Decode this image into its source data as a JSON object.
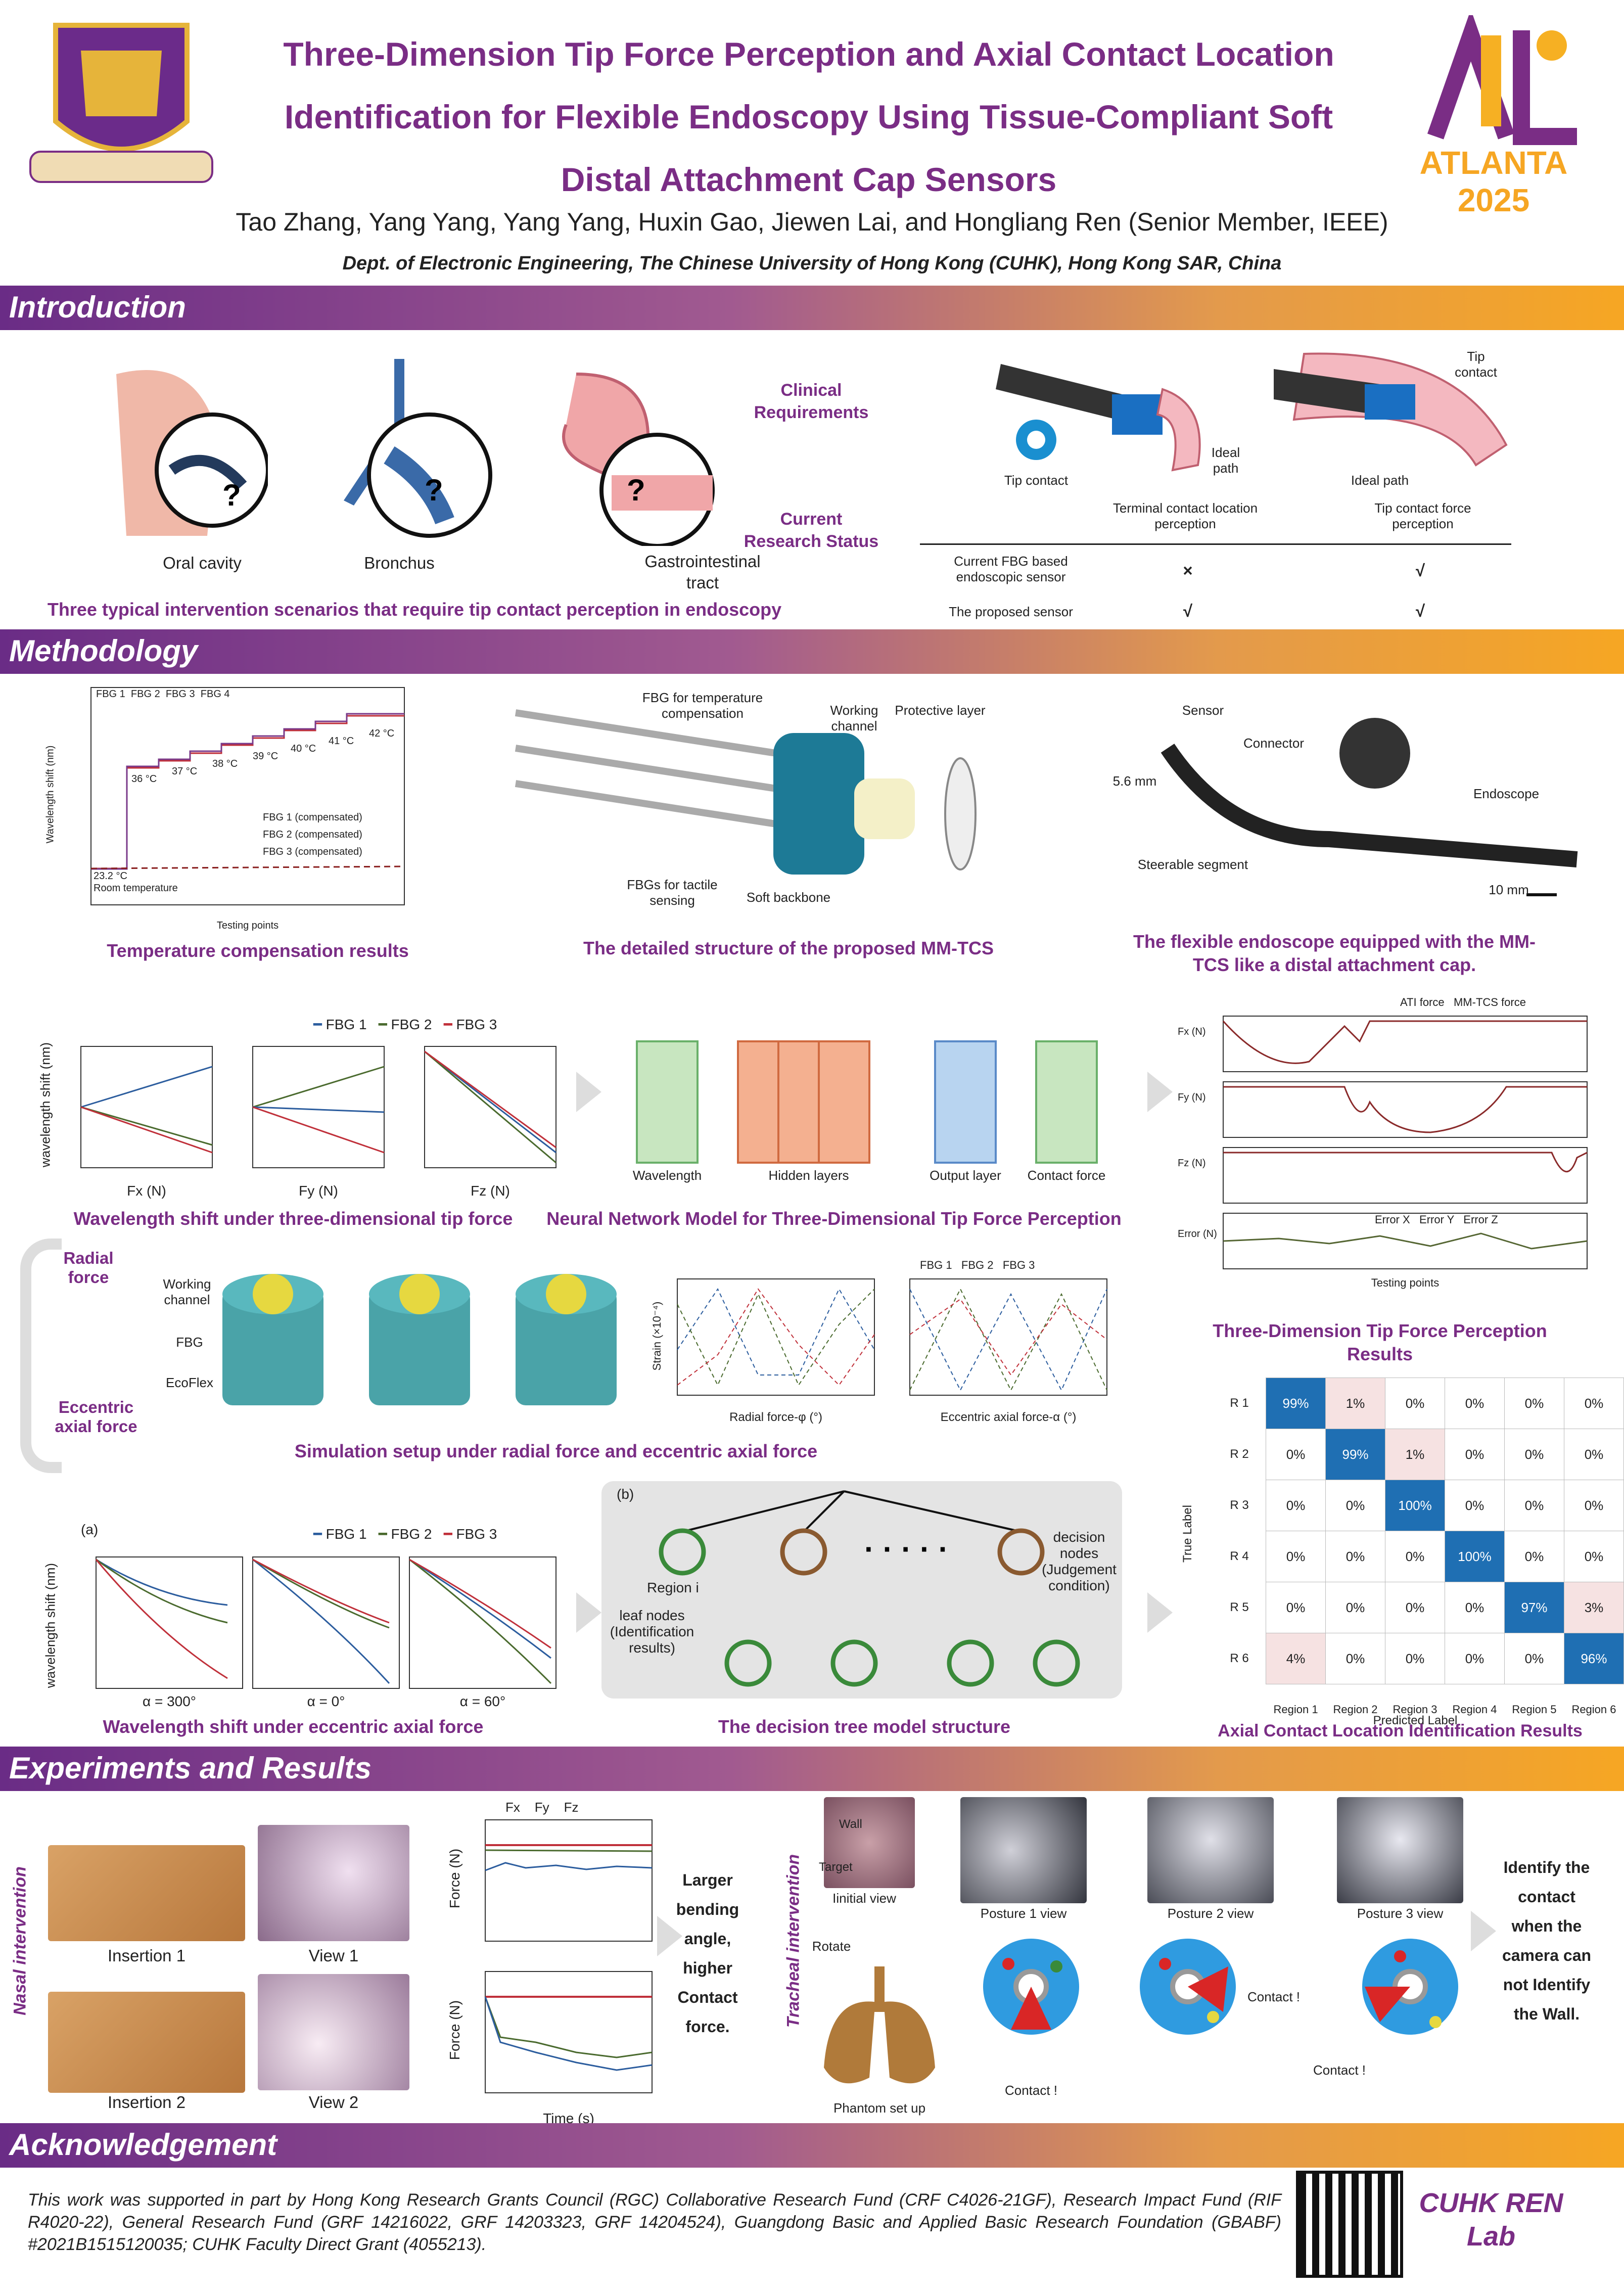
{
  "header": {
    "title_lines": [
      "Three-Dimension Tip Force Perception and Axial Contact Location",
      "Identification for Flexible Endoscopy Using Tissue-Compliant Soft",
      "Distal Attachment Cap Sensors"
    ],
    "authors": "Tao Zhang, Yang Yang, Yang Yang,  Huxin Gao, Jiewen Lai, and Hongliang Ren (Senior Member, IEEE)",
    "affiliation": "Dept. of Electronic Engineering, The Chinese University of Hong Kong (CUHK), Hong Kong SAR, China",
    "conf_badge": "ATLANTA 2025"
  },
  "sections": {
    "intro": "Introduction",
    "method": "Methodology",
    "exp": "Experiments and Results",
    "ack": "Acknowledgement"
  },
  "intro": {
    "scenarios": [
      "Oral cavity",
      "Bronchus",
      "Gastrointestinal tract"
    ],
    "scen_caption": "Three typical intervention scenarios that require tip contact perception in endoscopy",
    "clinical": "Clinical Requirements",
    "status": "Current Research Status",
    "tip_contact": "Tip contact",
    "ideal_path": "Ideal path",
    "ideal_path2": "Ideal path",
    "tip_contact2": "Tip contact",
    "col1": "Terminal contact location perception",
    "col2": "Tip contact force perception",
    "rows": [
      {
        "name": "Current FBG based endoscopic sensor",
        "c1": "×",
        "c2": "√"
      },
      {
        "name": "The proposed sensor",
        "c1": "√",
        "c2": "√"
      }
    ]
  },
  "method": {
    "temp_caption": "Temperature compensation results",
    "struct_caption": "The detailed structure of the proposed MM-TCS",
    "endo_caption": "The flexible endoscope equipped with the MM-TCS like a distal attachment cap.",
    "struct_labels": {
      "fbg_temp": "FBG for temperature compensation",
      "working": "Working channel",
      "protective": "Protective layer",
      "fbg_tactile": "FBGs for tactile sensing",
      "backbone": "Soft backbone"
    },
    "endo_labels": {
      "sensor": "Sensor",
      "connector": "Connector",
      "dia": "5.6 mm",
      "endoscope": "Endoscope",
      "steerable": "Steerable segment",
      "scale": "10 mm"
    },
    "ws_caption": "Wavelength shift under three-dimensional tip force",
    "nn_caption": "Neural Network Model for Three-Dimensional Tip Force Perception",
    "nn_labels": [
      "Wavelength",
      "Hidden layers",
      "Output layer",
      "Contact force"
    ],
    "force_caption": "Three-Dimension Tip Force Perception Results",
    "sim_caption": "Simulation setup under radial force and eccentric axial force",
    "sim_labels": {
      "radial": "Radial force",
      "eccentric": "Eccentric axial force",
      "working": "Working channel",
      "fbg": "FBG",
      "ecoflex": "EcoFlex"
    },
    "ecc_caption": "Wavelength shift under eccentric axial force",
    "tree_caption": "The decision tree model structure",
    "tree_labels": {
      "b": "(b)",
      "region_i": "Region i",
      "decision": "decision nodes (Judgement condition)",
      "leaf": "leaf nodes (Identification results)"
    },
    "axial_caption": "Axial Contact Location Identification Results"
  },
  "confusion": {
    "rows": [
      "R 1",
      "R 2",
      "R 3",
      "R 4",
      "R 5",
      "R 6"
    ],
    "cols": [
      "Region 1",
      "Region 2",
      "Region 3",
      "Region 4",
      "Region 5",
      "Region 6"
    ],
    "xlabel": "Predicted Label",
    "ylabel": "True Label",
    "values": [
      [
        "99%",
        "1%",
        "0%",
        "0%",
        "0%",
        "0%"
      ],
      [
        "0%",
        "99%",
        "1%",
        "0%",
        "0%",
        "0%"
      ],
      [
        "0%",
        "0%",
        "100%",
        "0%",
        "0%",
        "0%"
      ],
      [
        "0%",
        "0%",
        "0%",
        "100%",
        "0%",
        "0%"
      ],
      [
        "0%",
        "0%",
        "0%",
        "0%",
        "97%",
        "3%"
      ],
      [
        "4%",
        "0%",
        "0%",
        "0%",
        "0%",
        "96%"
      ]
    ]
  },
  "chart_data": [
    {
      "type": "line",
      "id": "temp",
      "xlabel": "Testing points",
      "ylabel": "Wavelength shift (nm)",
      "xlim": [
        0,
        4000
      ],
      "ylim": [
        -0.02,
        0.24
      ],
      "series": [
        {
          "name": "FBG 1"
        },
        {
          "name": "FBG 2"
        },
        {
          "name": "FBG 3"
        },
        {
          "name": "FBG 4"
        },
        {
          "name": "FBG 1 (compensated)"
        },
        {
          "name": "FBG 2 (compensated)"
        },
        {
          "name": "FBG 3 (compensated)"
        }
      ],
      "temps": [
        "23.2 °C",
        "36 °C",
        "37 °C",
        "38 °C",
        "39 °C",
        "40 °C",
        "41 °C",
        "42 °C"
      ],
      "room": "Room temperature"
    },
    {
      "type": "line",
      "id": "force",
      "series_names": [
        "FBG 1",
        "FBG 2",
        "FBG 3"
      ],
      "ylabel": "wavelength shift (nm)",
      "xlabels": [
        "Fx (N)",
        "Fy (N)",
        "Fz (N)"
      ]
    },
    {
      "type": "line",
      "id": "ecc",
      "series_names": [
        "FBG 1",
        "FBG 2",
        "FBG 3"
      ],
      "ylabel": "wavelength shift (nm)",
      "panel_labels": [
        "α = 300°",
        "α = 0°",
        "α = 60°"
      ],
      "tag": "(a)"
    },
    {
      "type": "line",
      "id": "result",
      "legend": [
        "ATI force",
        "MM-TCS force"
      ],
      "err_legend": [
        "Error X",
        "Error Y",
        "Error Z"
      ],
      "xlabel": "Testing points",
      "ylabels": [
        "Fx (N)",
        "Fy (N)",
        "Fz (N)",
        "Error (N)"
      ]
    },
    {
      "type": "scatter",
      "id": "sim",
      "legend": [
        "FBG 1",
        "FBG 2",
        "FBG 3"
      ],
      "xlabels": [
        "Radial force-φ (°)",
        "Eccentric axial force-α (°)"
      ],
      "ylabel": "Strain (×10⁻⁴)"
    },
    {
      "type": "line",
      "id": "nasal",
      "legend": [
        "Fx",
        "Fy",
        "Fz"
      ],
      "ylabel": "Force (N)",
      "xlabel": "Time (s)"
    }
  ],
  "exp": {
    "nasal": "Nasal intervention",
    "tracheal": "Tracheal intervention",
    "nasal_labels": [
      "Insertion 1",
      "View 1",
      "Insertion 2",
      "View 2"
    ],
    "nasal_text": "Larger bending angle, higher Contact force.",
    "trach_labels": {
      "wall": "Wall",
      "target": "Target",
      "init": "Iinitial view",
      "rotate": "Rotate",
      "phantom": "Phantom set up",
      "p1": "Posture 1 view",
      "p2": "Posture 2 view",
      "p3": "Posture 3 view",
      "contact": "Contact !"
    },
    "trach_text": "Identify the contact when the camera can not Identify the Wall."
  },
  "ack": {
    "text": "This work was supported in part by Hong Kong Research Grants Council (RGC) Collaborative Research Fund (CRF C4026-21GF), Research Impact Fund (RIF R4020-22), General Research Fund (GRF 14216022, GRF 14203323, GRF 14204524), Guangdong Basic and Applied Basic Research Foundation (GBABF) #2021B1515120035; CUHK Faculty Direct Grant (4055213).",
    "lab": "CUHK REN Lab"
  },
  "colors": {
    "purple": "#7a2d85",
    "fbg1": "#2c5d9e",
    "fbg2": "#4a6a2e",
    "fbg3": "#c0303a"
  }
}
